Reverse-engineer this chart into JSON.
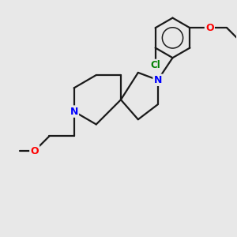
{
  "bg_color": "#e8e8e8",
  "bond_color": "#1a1a1a",
  "bond_width": 1.6,
  "atom_colors": {
    "N": "#0000ff",
    "O": "#ff0000",
    "Cl": "#008000",
    "C": "#1a1a1a"
  },
  "figsize": [
    3.0,
    3.0
  ],
  "dpi": 100,
  "xlim": [
    0,
    10
  ],
  "ylim": [
    0,
    10
  ]
}
